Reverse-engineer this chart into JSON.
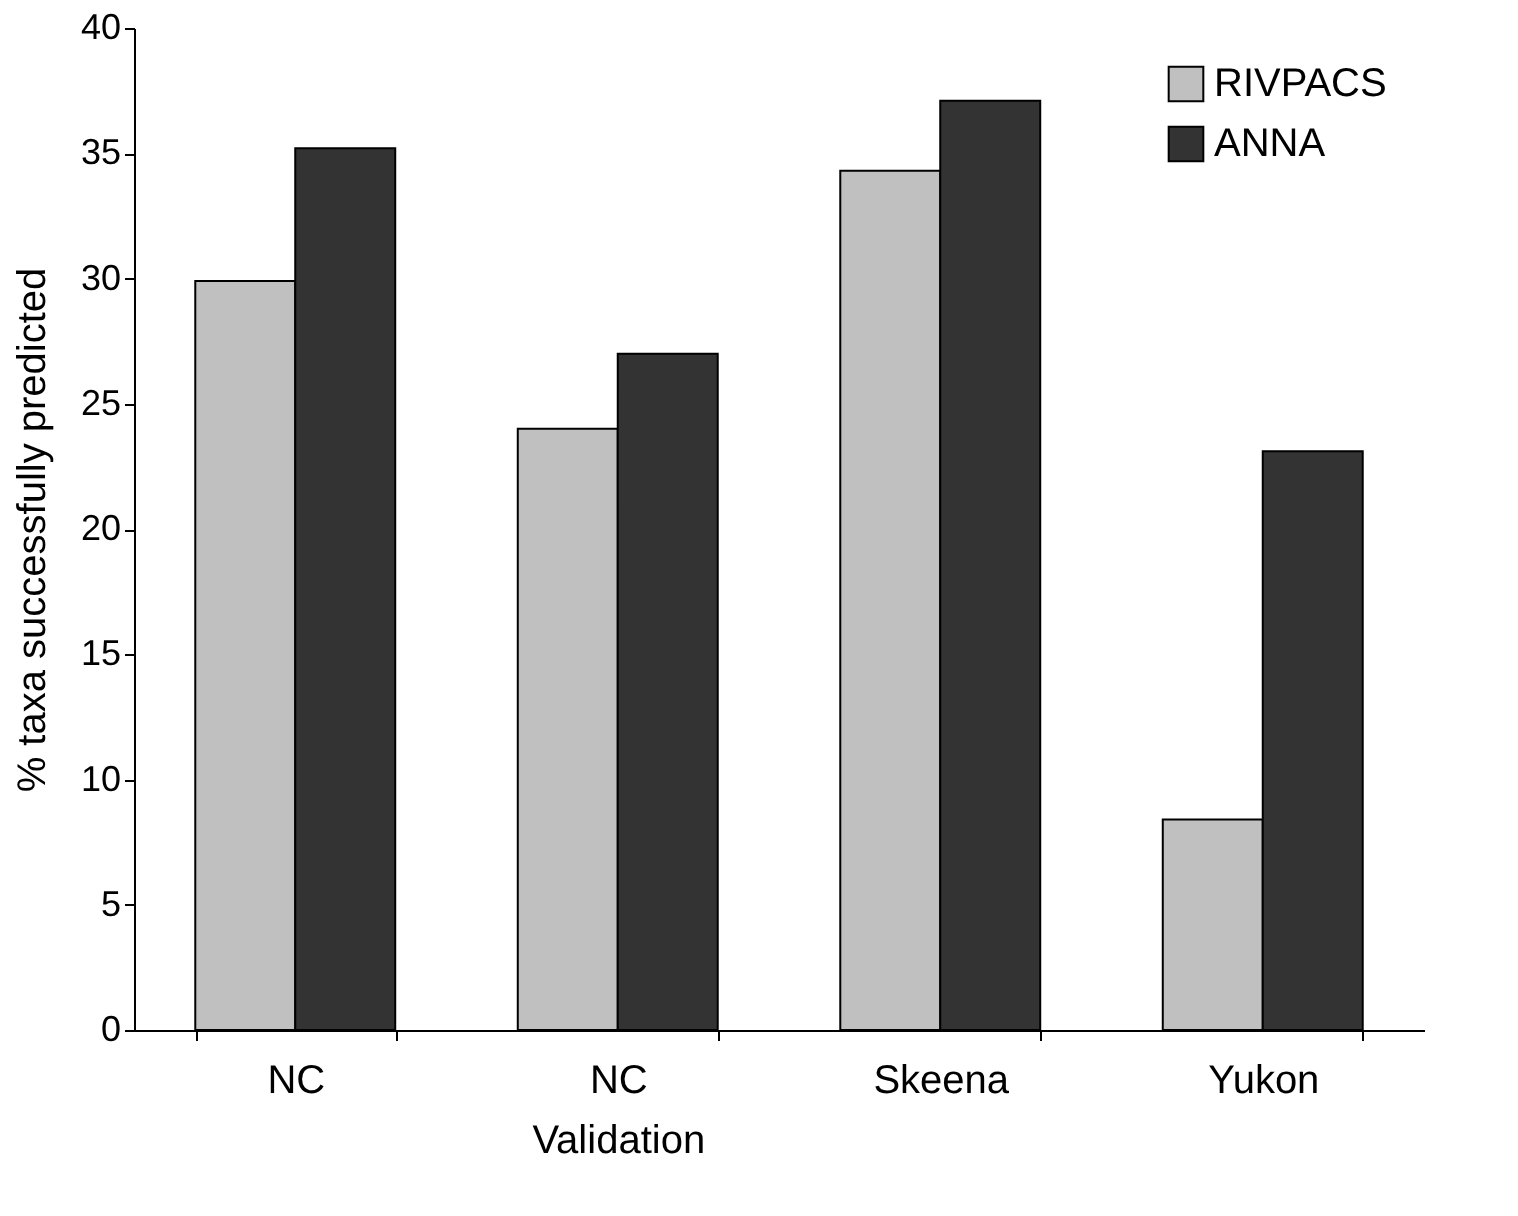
{
  "chart_data": {
    "type": "bar",
    "ylabel": "% taxa successfully predicted",
    "categories": [
      "NC",
      "NC Validation",
      "Skeena",
      "Yukon"
    ],
    "series": [
      {
        "name": "RIVPACS",
        "color": "#c0c0c0",
        "values": [
          29.9,
          24.0,
          34.3,
          8.4
        ]
      },
      {
        "name": "ANNA",
        "color": "#333333",
        "values": [
          35.2,
          27.0,
          37.1,
          23.1
        ]
      }
    ],
    "ylim": [
      0,
      40
    ],
    "yticks": [
      0,
      5,
      10,
      15,
      20,
      25,
      30,
      35,
      40
    ],
    "grid": false,
    "legend": "top right"
  }
}
